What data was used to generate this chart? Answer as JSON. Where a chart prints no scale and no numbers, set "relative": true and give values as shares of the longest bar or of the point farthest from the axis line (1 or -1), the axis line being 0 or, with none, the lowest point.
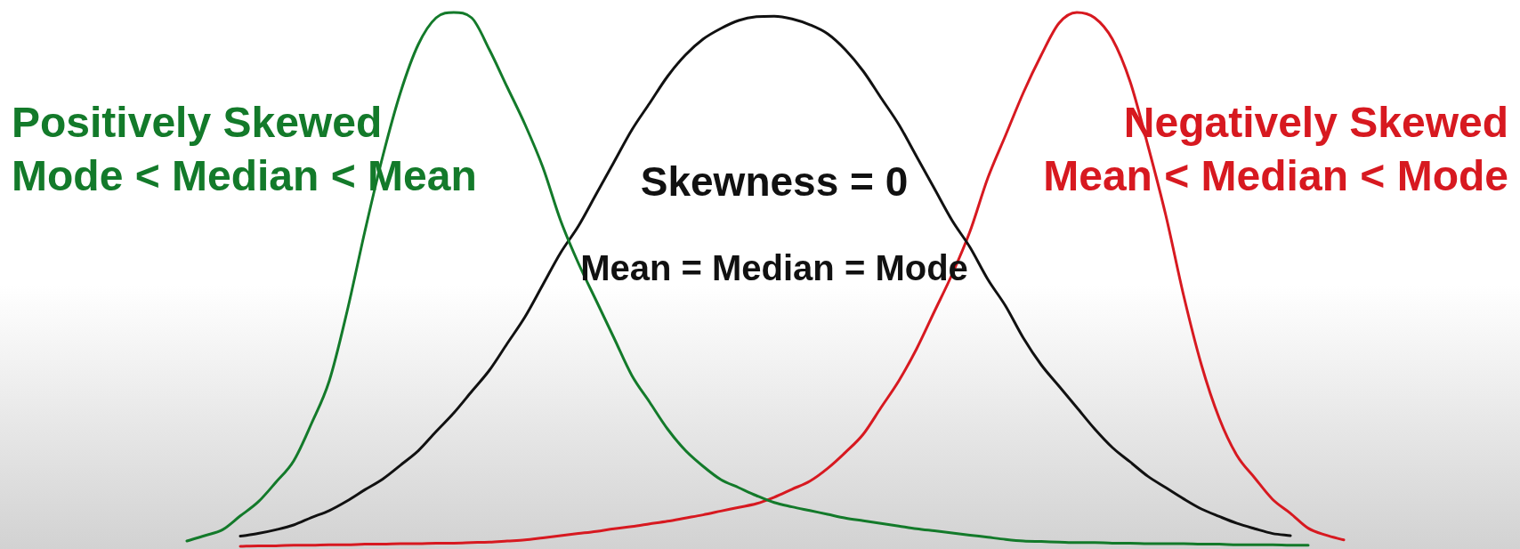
{
  "chart_data": {
    "type": "line",
    "relative": true,
    "categories": [
      null,
      null,
      null,
      null,
      null,
      null,
      null,
      null,
      null,
      null,
      null,
      null,
      null,
      null,
      null,
      null,
      null,
      null,
      null,
      null,
      null,
      null,
      null,
      null,
      null,
      null,
      null,
      null,
      null,
      null,
      null,
      null,
      null,
      null,
      null,
      null,
      null,
      null,
      null,
      null,
      null,
      null,
      null,
      null,
      null,
      null,
      null,
      null,
      null,
      null,
      null,
      null,
      null,
      null,
      null,
      null,
      null,
      null,
      null,
      null,
      null,
      null,
      null,
      null,
      null,
      null,
      null,
      null
    ],
    "series": [
      {
        "name": "Positively Skewed",
        "color": "#137a2a",
        "values": [
          null,
          0.01,
          0.02,
          0.031,
          0.057,
          0.083,
          0.12,
          0.16,
          0.23,
          0.31,
          0.44,
          0.59,
          0.73,
          0.85,
          0.94,
          0.99,
          1,
          0.99,
          0.93,
          0.86,
          0.79,
          0.71,
          0.61,
          0.53,
          0.46,
          0.39,
          0.32,
          0.27,
          0.22,
          0.18,
          0.15,
          0.125,
          0.11,
          0.095,
          0.082,
          0.074,
          0.067,
          0.06,
          0.053,
          0.048,
          0.043,
          0.038,
          0.033,
          0.029,
          0.025,
          0.021,
          0.017,
          0.013,
          0.01,
          0.009,
          0.008,
          0.007,
          0.007,
          0.006,
          0.006,
          0.005,
          0.005,
          0.005,
          0.004,
          0.004,
          0.003,
          0.003,
          0.003,
          0.002,
          0.002,
          null,
          null,
          null
        ]
      },
      {
        "name": "Skewness = 0",
        "color": "#111111",
        "values": [
          null,
          null,
          null,
          null,
          0.019,
          0.024,
          0.031,
          0.04,
          0.054,
          0.067,
          0.085,
          0.106,
          0.126,
          0.152,
          0.179,
          0.215,
          0.25,
          0.29,
          0.33,
          0.38,
          0.43,
          0.49,
          0.55,
          0.6,
          0.66,
          0.72,
          0.78,
          0.83,
          0.88,
          0.92,
          0.95,
          0.97,
          0.985,
          0.992,
          0.993,
          0.988,
          0.977,
          0.96,
          0.93,
          0.89,
          0.84,
          0.79,
          0.73,
          0.67,
          0.61,
          0.56,
          0.5,
          0.45,
          0.39,
          0.34,
          0.3,
          0.26,
          0.22,
          0.185,
          0.158,
          0.131,
          0.11,
          0.089,
          0.07,
          0.056,
          0.043,
          0.033,
          0.024,
          0.02,
          null,
          null,
          null,
          null
        ]
      },
      {
        "name": "Negatively Skewed",
        "color": "#d71920",
        "values": [
          null,
          null,
          null,
          null,
          0,
          0.001,
          0.001,
          0.002,
          0.002,
          0.003,
          0.003,
          0.004,
          0.004,
          0.005,
          0.005,
          0.006,
          0.006,
          0.007,
          0.008,
          0.01,
          0.012,
          0.016,
          0.02,
          0.024,
          0.028,
          0.033,
          0.037,
          0.042,
          0.047,
          0.053,
          0.059,
          0.066,
          0.073,
          0.08,
          0.092,
          0.107,
          0.122,
          0.146,
          0.176,
          0.21,
          0.26,
          0.31,
          0.37,
          0.44,
          0.51,
          0.59,
          0.69,
          0.77,
          0.85,
          0.92,
          0.98,
          1,
          0.99,
          0.95,
          0.87,
          0.75,
          0.62,
          0.47,
          0.34,
          0.24,
          0.17,
          0.128,
          0.088,
          0.062,
          0.034,
          0.021,
          0.012,
          null
        ]
      }
    ],
    "annotations": [
      "Mode < Median < Mean",
      "Mean = Median = Mode",
      "Mean < Median < Mode"
    ]
  }
}
